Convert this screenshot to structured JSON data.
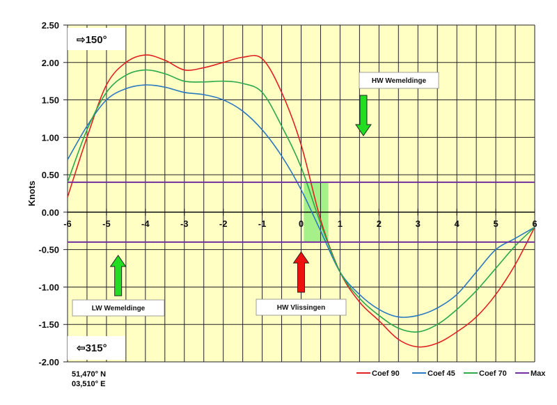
{
  "chart_data": {
    "type": "line",
    "ylabel": "Knots",
    "xlim": [
      -6,
      6
    ],
    "ylim": [
      -2.0,
      2.5
    ],
    "xticks": [
      "-6",
      "-5",
      "-4",
      "-3",
      "-2",
      "-1",
      "0",
      "1",
      "2",
      "3",
      "4",
      "5",
      "6"
    ],
    "yticks": [
      "2.50",
      "2.00",
      "1.50",
      "1.00",
      "0.50",
      "0.00",
      "-0.50",
      "-1.00",
      "-1.50",
      "-2.00"
    ],
    "grid": true,
    "legend": "bottom-right",
    "x": [
      -6,
      -5.5,
      -5,
      -4.5,
      -4,
      -3.5,
      -3,
      -2.5,
      -2,
      -1.5,
      -1,
      -0.5,
      0,
      0.5,
      1,
      1.5,
      2,
      2.5,
      3,
      3.5,
      4,
      4.5,
      5,
      5.5,
      6
    ],
    "series": [
      {
        "name": "Coef 90",
        "color": "#e02020",
        "values": [
          0.2,
          1.0,
          1.7,
          2.0,
          2.1,
          2.03,
          1.9,
          1.93,
          2.0,
          2.07,
          2.05,
          1.6,
          0.9,
          -0.1,
          -0.8,
          -1.2,
          -1.45,
          -1.7,
          -1.8,
          -1.75,
          -1.6,
          -1.4,
          -1.1,
          -0.7,
          -0.2
        ]
      },
      {
        "name": "Coef 45",
        "color": "#2a78c0",
        "values": [
          0.7,
          1.15,
          1.5,
          1.65,
          1.7,
          1.67,
          1.6,
          1.57,
          1.5,
          1.35,
          1.1,
          0.75,
          0.3,
          -0.25,
          -0.8,
          -1.1,
          -1.3,
          -1.4,
          -1.38,
          -1.28,
          -1.1,
          -0.8,
          -0.5,
          -0.35,
          -0.2
        ]
      },
      {
        "name": "Coef 70",
        "color": "#2aa84a",
        "values": [
          0.4,
          1.1,
          1.6,
          1.83,
          1.9,
          1.85,
          1.75,
          1.74,
          1.75,
          1.72,
          1.6,
          1.15,
          0.6,
          -0.15,
          -0.8,
          -1.15,
          -1.38,
          -1.55,
          -1.6,
          -1.5,
          -1.3,
          -1.05,
          -0.75,
          -0.45,
          -0.2
        ]
      },
      {
        "name": "Max",
        "color": "#7030a0",
        "hlines": [
          0.4,
          -0.4
        ]
      }
    ],
    "highlight": {
      "x": [
        0.07,
        0.7
      ],
      "y": [
        -0.4,
        0.4
      ],
      "color": "#a6f08a"
    },
    "annotations": [
      {
        "text": "HW Wemeldinge",
        "x": 1.6,
        "arrow": "down",
        "arrow_color": "#22dd22"
      },
      {
        "text": "LW Wemeldinge",
        "x": -4.7,
        "arrow": "up",
        "arrow_color": "#22dd22"
      },
      {
        "text": "HW Vlissingen",
        "x": 0,
        "arrow": "up",
        "arrow_color": "#ee1111"
      }
    ],
    "direction_flood": "⇨150°",
    "direction_ebb": "⇦315°",
    "position_lat": "51,470° N",
    "position_lon": "03,510° E"
  }
}
